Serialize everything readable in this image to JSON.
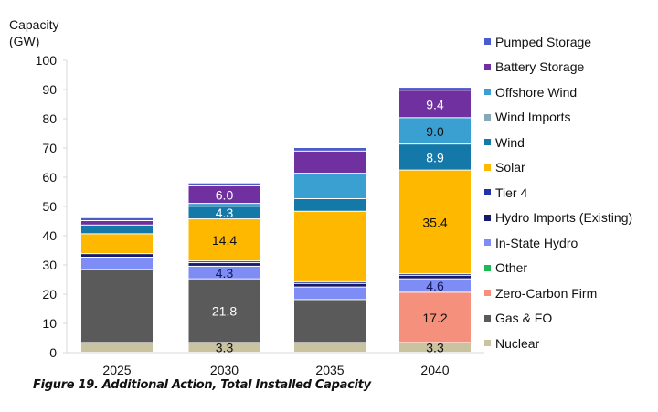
{
  "chart_data": {
    "type": "bar",
    "stacked": true,
    "title": "",
    "xlabel": "",
    "ylabel": "Capacity (GW)",
    "ylabel_lines": [
      "Capacity",
      "(GW)"
    ],
    "ylim": [
      0,
      100
    ],
    "yticks": [
      0,
      10,
      20,
      30,
      40,
      50,
      60,
      70,
      80,
      90,
      100
    ],
    "grid": false,
    "legend_position": "right",
    "categories": [
      "2025",
      "2030",
      "2035",
      "2040"
    ],
    "series": [
      {
        "name": "Nuclear",
        "color": "#c9c3a0",
        "values": [
          3.3,
          3.3,
          3.3,
          3.3
        ],
        "labels": [
          null,
          "3.3",
          null,
          "3.3"
        ],
        "label_color": "#111111"
      },
      {
        "name": "Gas & FO",
        "color": "#5a5a5a",
        "values": [
          24.9,
          21.8,
          14.7,
          0
        ],
        "labels": [
          null,
          "21.8",
          null,
          null
        ],
        "label_color": "#ffffff"
      },
      {
        "name": "Zero-Carbon Firm",
        "color": "#f4907b",
        "values": [
          0,
          0,
          0,
          17.2
        ],
        "labels": [
          null,
          null,
          null,
          "17.2"
        ],
        "label_color": "#111111"
      },
      {
        "name": "Other",
        "color": "#1db954",
        "values": [
          0,
          0,
          0,
          0
        ],
        "labels": [
          null,
          null,
          null,
          null
        ],
        "label_color": "#111111"
      },
      {
        "name": "In-State Hydro",
        "color": "#7e8cf5",
        "values": [
          4.3,
          4.3,
          4.3,
          4.6
        ],
        "labels": [
          null,
          "4.3",
          null,
          "4.6"
        ],
        "label_color": "#111a55"
      },
      {
        "name": "Hydro Imports (Existing)",
        "color": "#151a6b",
        "values": [
          1.2,
          1.2,
          1.2,
          1.2
        ],
        "labels": [
          null,
          null,
          null,
          null
        ],
        "label_color": "#ffffff"
      },
      {
        "name": "Tier 4",
        "color": "#2233aa",
        "values": [
          0,
          0.6,
          0.6,
          0.6
        ],
        "labels": [
          null,
          null,
          null,
          null
        ],
        "label_color": "#ffffff"
      },
      {
        "name": "Solar",
        "color": "#ffb800",
        "values": [
          6.8,
          14.4,
          24.1,
          35.4
        ],
        "labels": [
          null,
          "14.4",
          null,
          "35.4"
        ],
        "label_color": "#111111"
      },
      {
        "name": "Wind",
        "color": "#1478a8",
        "values": [
          3.0,
          4.3,
          4.3,
          8.9
        ],
        "labels": [
          null,
          "4.3",
          null,
          "8.9"
        ],
        "label_color": "#ffffff"
      },
      {
        "name": "Wind Imports",
        "color": "#86a9b8",
        "values": [
          0,
          0,
          0,
          0
        ],
        "labels": [
          null,
          null,
          null,
          null
        ],
        "label_color": "#111111"
      },
      {
        "name": "Offshore Wind",
        "color": "#3aa0d2",
        "values": [
          0,
          1.0,
          8.7,
          9.0
        ],
        "labels": [
          null,
          null,
          null,
          "9.0"
        ],
        "label_color": "#111111"
      },
      {
        "name": "Battery Storage",
        "color": "#7030a0",
        "values": [
          1.5,
          6.0,
          7.6,
          9.4
        ],
        "labels": [
          null,
          "6.0",
          null,
          "9.4"
        ],
        "label_color": "#ffffff"
      },
      {
        "name": "Pumped Storage",
        "color": "#4a5ccc",
        "values": [
          1.0,
          1.0,
          1.2,
          1.0
        ],
        "labels": [
          null,
          null,
          null,
          null
        ],
        "label_color": "#ffffff"
      }
    ],
    "legend_order": [
      "Pumped Storage",
      "Battery Storage",
      "Offshore Wind",
      "Wind Imports",
      "Wind",
      "Solar",
      "Tier 4",
      "Hydro Imports (Existing)",
      "In-State Hydro",
      "Other",
      "Zero-Carbon Firm",
      "Gas & FO",
      "Nuclear"
    ]
  },
  "caption": "Figure 19. Additional Action, Total Installed Capacity"
}
